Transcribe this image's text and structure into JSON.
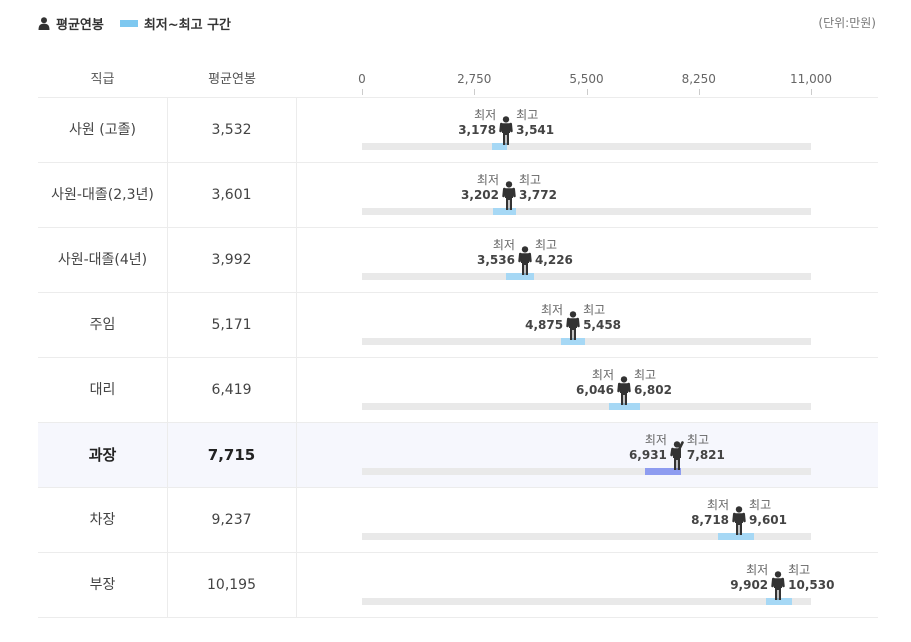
{
  "legend": {
    "avg_label": "평균연봉",
    "range_label": "최저~최고 구간"
  },
  "unit": "(단위:만원)",
  "header": {
    "col_rank": "직급",
    "col_avg": "평균연봉"
  },
  "range_caption": {
    "min": "최저",
    "max": "최고"
  },
  "colors": {
    "range": "#a6d8f5",
    "range_highlight": "#8e9cf0",
    "track": "#e9e9e9",
    "legend_swatch": "#7ec8f0",
    "highlight_bg": "#f6f7fd"
  },
  "chart_data": {
    "type": "range_bar",
    "xlim": [
      0,
      11000
    ],
    "ticks": [
      "0",
      "2,750",
      "5,500",
      "8,250",
      "11,000"
    ],
    "tick_values": [
      0,
      2750,
      5500,
      8250,
      11000
    ],
    "highlight_index": 5,
    "rows": [
      {
        "rank": "사원 (고졸)",
        "avg": "3,532",
        "avg_value": 3532,
        "min": "3,178",
        "min_value": 3178,
        "max": "3,541",
        "max_value": 3541
      },
      {
        "rank": "사원-대졸(2,3년)",
        "avg": "3,601",
        "avg_value": 3601,
        "min": "3,202",
        "min_value": 3202,
        "max": "3,772",
        "max_value": 3772
      },
      {
        "rank": "사원-대졸(4년)",
        "avg": "3,992",
        "avg_value": 3992,
        "min": "3,536",
        "min_value": 3536,
        "max": "4,226",
        "max_value": 4226
      },
      {
        "rank": "주임",
        "avg": "5,171",
        "avg_value": 5171,
        "min": "4,875",
        "min_value": 4875,
        "max": "5,458",
        "max_value": 5458
      },
      {
        "rank": "대리",
        "avg": "6,419",
        "avg_value": 6419,
        "min": "6,046",
        "min_value": 6046,
        "max": "6,802",
        "max_value": 6802
      },
      {
        "rank": "과장",
        "avg": "7,715",
        "avg_value": 7715,
        "min": "6,931",
        "min_value": 6931,
        "max": "7,821",
        "max_value": 7821
      },
      {
        "rank": "차장",
        "avg": "9,237",
        "avg_value": 9237,
        "min": "8,718",
        "min_value": 8718,
        "max": "9,601",
        "max_value": 9601
      },
      {
        "rank": "부장",
        "avg": "10,195",
        "avg_value": 10195,
        "min": "9,902",
        "min_value": 9902,
        "max": "10,530",
        "max_value": 10530
      }
    ]
  }
}
